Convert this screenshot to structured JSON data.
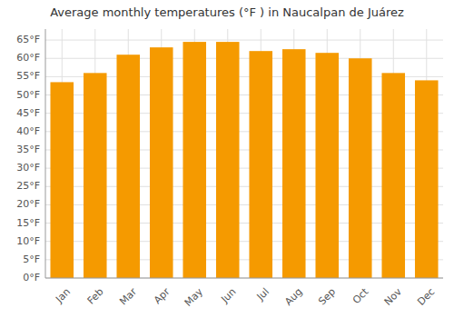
{
  "chart_data": {
    "type": "bar",
    "title": "Average monthly temperatures (°F ) in Naucalpan de Juárez",
    "categories": [
      "Jan",
      "Feb",
      "Mar",
      "Apr",
      "May",
      "Jun",
      "Jul",
      "Aug",
      "Sep",
      "Oct",
      "Nov",
      "Dec"
    ],
    "values": [
      53.5,
      56.0,
      61.0,
      63.0,
      64.5,
      64.5,
      62.0,
      62.5,
      61.5,
      60.0,
      56.0,
      54.0
    ],
    "color": "#F59A00",
    "ylim": [
      0,
      68
    ],
    "yticks": [
      {
        "value": 0,
        "label": "0°F"
      },
      {
        "value": 5,
        "label": "5°F"
      },
      {
        "value": 10,
        "label": "10°F"
      },
      {
        "value": 15,
        "label": "15°F"
      },
      {
        "value": 20,
        "label": "20°F"
      },
      {
        "value": 25,
        "label": "25°F"
      },
      {
        "value": 30,
        "label": "30°F"
      },
      {
        "value": 35,
        "label": "35°F"
      },
      {
        "value": 40,
        "label": "40°F"
      },
      {
        "value": 45,
        "label": "45°F"
      },
      {
        "value": 50,
        "label": "50°F"
      },
      {
        "value": 55,
        "label": "55°F"
      },
      {
        "value": 60,
        "label": "60°F"
      },
      {
        "value": 65,
        "label": "65°F"
      }
    ],
    "grid": true
  }
}
